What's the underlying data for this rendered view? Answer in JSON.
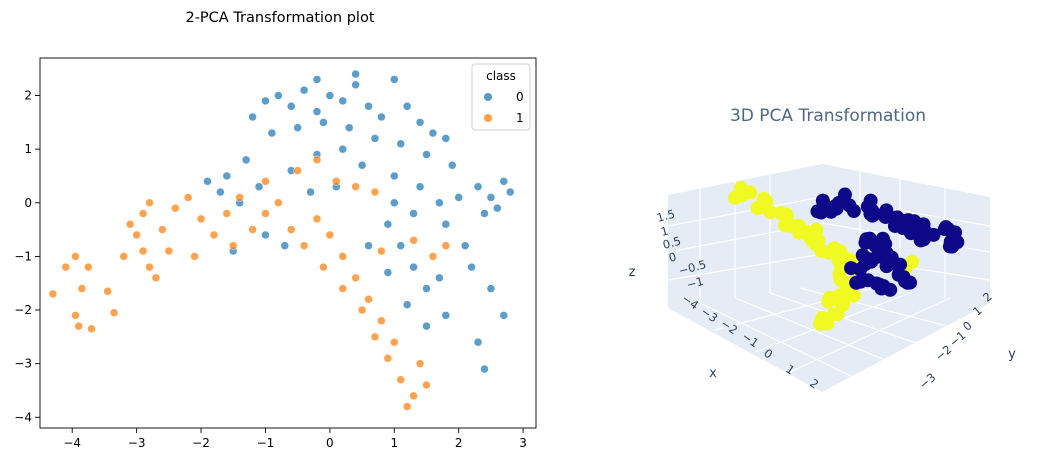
{
  "chart_data": [
    {
      "type": "scatter",
      "title": "2-PCA Transformation plot",
      "xlabel": "",
      "ylabel": "",
      "xlim": [
        -4.5,
        3.2
      ],
      "ylim": [
        -4.2,
        2.7
      ],
      "xticks": [
        -4,
        -3,
        -2,
        -1,
        0,
        1,
        2,
        3
      ],
      "yticks": [
        -4,
        -3,
        -2,
        -1,
        0,
        1,
        2
      ],
      "grid": false,
      "legend": {
        "title": "class",
        "placement": "top-right"
      },
      "colors": {
        "0": "#1f77b4",
        "1": "#ff7f0e"
      },
      "series": [
        {
          "name": "0",
          "points": [
            [
              -1.2,
              1.6
            ],
            [
              -1.0,
              1.9
            ],
            [
              -0.8,
              2.0
            ],
            [
              -0.6,
              1.8
            ],
            [
              -0.4,
              2.1
            ],
            [
              -0.2,
              1.7
            ],
            [
              0.0,
              2.0
            ],
            [
              0.2,
              1.9
            ],
            [
              0.4,
              2.2
            ],
            [
              0.6,
              1.8
            ],
            [
              0.8,
              1.6
            ],
            [
              1.0,
              2.3
            ],
            [
              1.2,
              1.8
            ],
            [
              1.4,
              1.5
            ],
            [
              1.6,
              1.3
            ],
            [
              1.8,
              1.2
            ],
            [
              -0.9,
              1.3
            ],
            [
              -0.5,
              1.4
            ],
            [
              -0.1,
              1.5
            ],
            [
              0.3,
              1.4
            ],
            [
              0.7,
              1.2
            ],
            [
              1.1,
              1.1
            ],
            [
              1.5,
              0.9
            ],
            [
              1.9,
              0.7
            ],
            [
              2.3,
              0.3
            ],
            [
              2.5,
              0.1
            ],
            [
              2.7,
              0.4
            ],
            [
              2.8,
              0.2
            ],
            [
              2.4,
              -0.2
            ],
            [
              2.6,
              -0.1
            ],
            [
              2.0,
              0.1
            ],
            [
              1.7,
              0.0
            ],
            [
              1.3,
              -0.2
            ],
            [
              0.9,
              -0.4
            ],
            [
              1.1,
              -0.8
            ],
            [
              1.3,
              -1.2
            ],
            [
              1.5,
              -1.6
            ],
            [
              1.7,
              -1.4
            ],
            [
              2.2,
              -1.2
            ],
            [
              2.5,
              -1.6
            ],
            [
              2.7,
              -2.1
            ],
            [
              2.3,
              -2.6
            ],
            [
              2.4,
              -3.1
            ],
            [
              1.8,
              -2.1
            ],
            [
              1.5,
              -2.3
            ],
            [
              -1.6,
              0.5
            ],
            [
              -1.3,
              0.8
            ],
            [
              -1.7,
              0.2
            ],
            [
              -1.9,
              0.4
            ],
            [
              -1.4,
              0.0
            ],
            [
              -1.1,
              0.3
            ],
            [
              -0.6,
              0.6
            ],
            [
              -0.2,
              0.9
            ],
            [
              0.2,
              1.0
            ],
            [
              0.5,
              0.7
            ],
            [
              0.1,
              0.3
            ],
            [
              -0.3,
              0.2
            ],
            [
              1.0,
              0.5
            ],
            [
              1.4,
              0.3
            ],
            [
              0.6,
              -0.8
            ],
            [
              0.9,
              -1.3
            ],
            [
              1.2,
              -1.9
            ],
            [
              -1.0,
              -0.6
            ],
            [
              -0.7,
              -0.8
            ],
            [
              -1.5,
              -0.9
            ],
            [
              0.4,
              2.4
            ],
            [
              -0.2,
              2.3
            ],
            [
              1.0,
              0.0
            ],
            [
              1.8,
              -0.4
            ],
            [
              2.1,
              -0.8
            ]
          ]
        },
        {
          "name": "1",
          "points": [
            [
              -4.3,
              -1.7
            ],
            [
              -4.1,
              -1.2
            ],
            [
              -3.95,
              -1.0
            ],
            [
              -3.85,
              -1.6
            ],
            [
              -3.95,
              -2.1
            ],
            [
              -3.9,
              -2.3
            ],
            [
              -3.75,
              -1.2
            ],
            [
              -3.7,
              -2.35
            ],
            [
              -3.45,
              -1.65
            ],
            [
              -3.35,
              -2.05
            ],
            [
              -3.2,
              -1.0
            ],
            [
              -3.0,
              -0.6
            ],
            [
              -2.9,
              -0.2
            ],
            [
              -2.8,
              0.0
            ],
            [
              -3.1,
              -0.4
            ],
            [
              -2.6,
              -0.5
            ],
            [
              -2.5,
              -0.9
            ],
            [
              -2.7,
              -1.4
            ],
            [
              -2.4,
              -0.1
            ],
            [
              -2.2,
              0.1
            ],
            [
              -2.0,
              -0.3
            ],
            [
              -1.8,
              -0.6
            ],
            [
              -1.6,
              -0.2
            ],
            [
              -1.4,
              0.1
            ],
            [
              -1.2,
              -0.5
            ],
            [
              -1.0,
              -0.2
            ],
            [
              -0.8,
              0.0
            ],
            [
              -0.6,
              -0.5
            ],
            [
              -0.4,
              -0.8
            ],
            [
              -0.2,
              -0.3
            ],
            [
              0.0,
              -0.6
            ],
            [
              0.2,
              -1.0
            ],
            [
              0.4,
              -1.4
            ],
            [
              0.6,
              -1.8
            ],
            [
              0.8,
              -2.2
            ],
            [
              1.0,
              -2.6
            ],
            [
              0.9,
              -2.9
            ],
            [
              1.1,
              -3.3
            ],
            [
              1.3,
              -3.6
            ],
            [
              1.5,
              -3.4
            ],
            [
              1.2,
              -3.8
            ],
            [
              1.4,
              -3.0
            ],
            [
              0.7,
              -2.5
            ],
            [
              0.5,
              -2.0
            ],
            [
              1.6,
              -1.0
            ],
            [
              1.8,
              -0.8
            ],
            [
              1.3,
              -0.7
            ],
            [
              -0.5,
              0.6
            ],
            [
              -0.2,
              0.8
            ],
            [
              0.1,
              0.4
            ],
            [
              0.4,
              0.3
            ],
            [
              0.7,
              0.2
            ],
            [
              -1.0,
              0.4
            ],
            [
              -1.5,
              -0.8
            ],
            [
              -2.1,
              -1.0
            ],
            [
              -2.8,
              -1.2
            ],
            [
              -2.9,
              -0.9
            ],
            [
              0.2,
              -1.6
            ],
            [
              -0.1,
              -1.2
            ],
            [
              0.8,
              -0.9
            ]
          ]
        }
      ]
    },
    {
      "type": "scatter3d",
      "title": "3D PCA Transformation",
      "xlabel": "x",
      "ylabel": "y",
      "zlabel": "z",
      "x_ticks": [
        "−4",
        "−3",
        "−2",
        "−1",
        "0",
        "1",
        "2"
      ],
      "y_ticks": [
        "2",
        "1",
        "0",
        "−1",
        "−2",
        "−3"
      ],
      "z_ticks": [
        "1.5",
        "1",
        "0.5",
        "0",
        "−0.5",
        "−1"
      ],
      "colors": {
        "0": "#0d0887",
        "1": "#f0f921"
      }
    }
  ]
}
